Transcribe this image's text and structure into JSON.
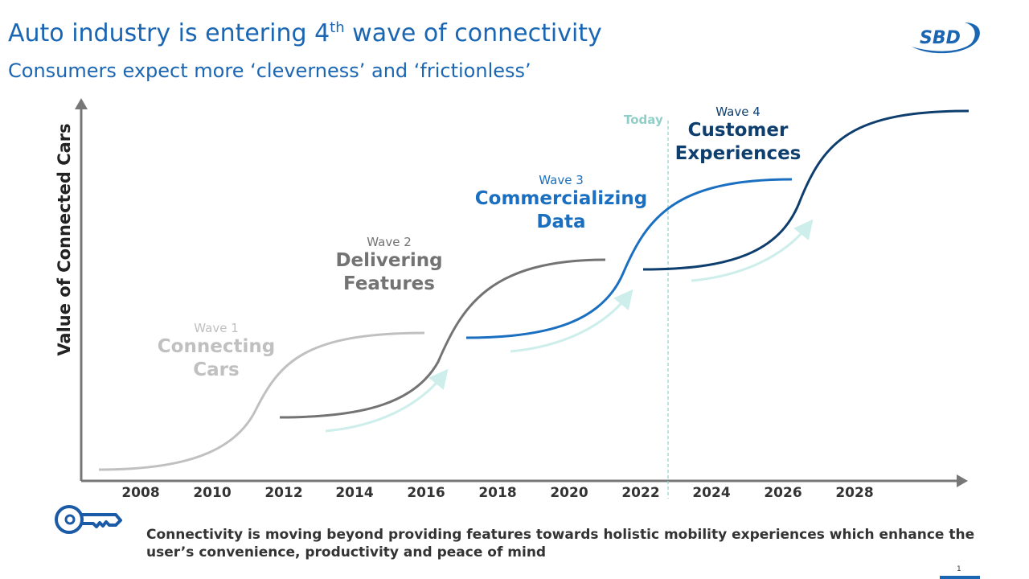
{
  "header": {
    "title_prefix": "Auto industry is entering 4",
    "title_sup": "th",
    "title_suffix": " wave of connectivity",
    "subtitle": "Consumers expect more ‘cleverness’ and ‘frictionless’",
    "logo_text": "SBD"
  },
  "diagram": {
    "y_axis_label": "Value of Connected Cars",
    "x_ticks": [
      "2008",
      "2010",
      "2012",
      "2014",
      "2016",
      "2018",
      "2020",
      "2022",
      "2024",
      "2026",
      "2028"
    ],
    "today_label": "Today",
    "waves": [
      {
        "number": "Wave 1",
        "title_line1": "Connecting",
        "title_line2": "Cars",
        "color": "#c0c0c0"
      },
      {
        "number": "Wave 2",
        "title_line1": "Delivering",
        "title_line2": "Features",
        "color": "#737373"
      },
      {
        "number": "Wave 3",
        "title_line1": "Commercializing",
        "title_line2": "Data",
        "color": "#1a6fc0"
      },
      {
        "number": "Wave 4",
        "title_line1": "Customer",
        "title_line2": "Experiences",
        "color": "#0e3e6e"
      }
    ],
    "arrow_color": "#cdeeea"
  },
  "footer": {
    "icon": "key-icon",
    "text": "Connectivity is moving beyond providing features towards holistic mobility experiences which enhance the user’s convenience, productivity and peace of mind",
    "page_number": "1"
  }
}
